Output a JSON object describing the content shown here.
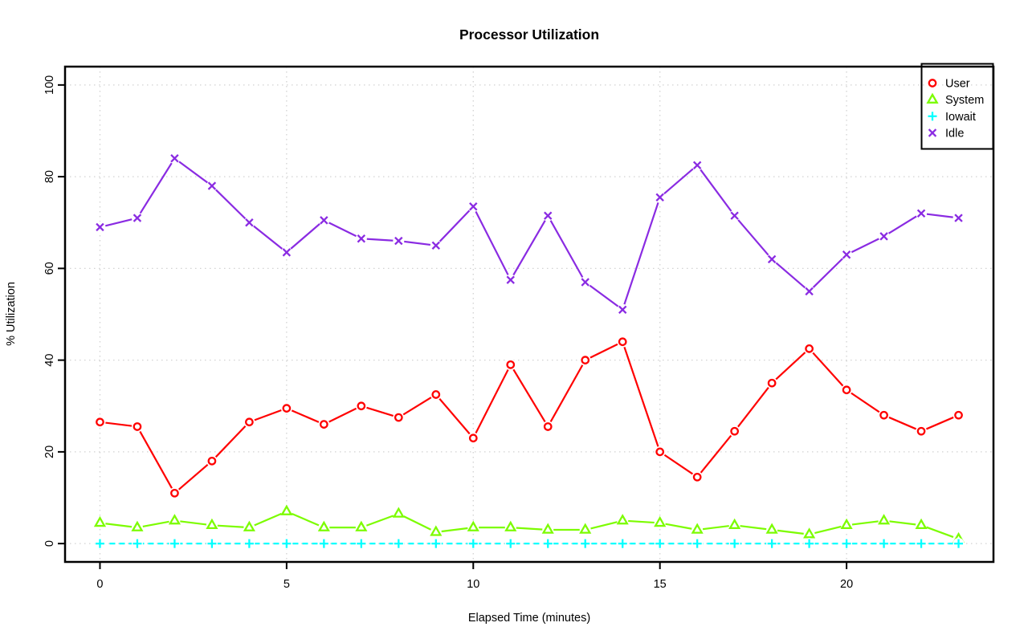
{
  "title": "Processor Utilization",
  "chart_data": {
    "type": "line",
    "title": "Processor Utilization",
    "xlabel": "Elapsed Time (minutes)",
    "ylabel": "% Utilization",
    "x": [
      0,
      1,
      2,
      3,
      4,
      5,
      6,
      7,
      8,
      9,
      10,
      11,
      12,
      13,
      14,
      15,
      16,
      17,
      18,
      19,
      20,
      21,
      22,
      23
    ],
    "series": [
      {
        "name": "User",
        "color": "#ff0000",
        "marker": "circle",
        "linestyle": "solid",
        "values": [
          26.5,
          25.5,
          11,
          18,
          26.5,
          29.5,
          26,
          30,
          27.5,
          32.5,
          23,
          39,
          25.5,
          40,
          44,
          20,
          14.5,
          24.5,
          35,
          42.5,
          33.5,
          28,
          24.5,
          28
        ]
      },
      {
        "name": "System",
        "color": "#7cfc00",
        "marker": "triangle",
        "linestyle": "solid",
        "values": [
          4.5,
          3.5,
          5,
          4,
          3.5,
          7,
          3.5,
          3.5,
          6.5,
          2.5,
          3.5,
          3.5,
          3,
          3,
          5,
          4.5,
          3,
          4,
          3,
          2,
          4,
          5,
          4,
          1
        ]
      },
      {
        "name": "Iowait",
        "color": "#00ffff",
        "marker": "plus",
        "linestyle": "dashed",
        "values": [
          0,
          0,
          0,
          0,
          0,
          0,
          0,
          0,
          0,
          0,
          0,
          0,
          0,
          0,
          0,
          0,
          0,
          0,
          0,
          0,
          0,
          0,
          0,
          0
        ]
      },
      {
        "name": "Idle",
        "color": "#8a2be2",
        "marker": "x",
        "linestyle": "solid",
        "values": [
          69,
          71,
          84,
          78,
          70,
          63.5,
          70.5,
          66.5,
          66,
          65,
          73.5,
          57.5,
          71.5,
          57,
          51,
          75.5,
          82.5,
          71.5,
          62,
          55,
          63,
          67,
          72,
          71
        ]
      }
    ],
    "xticks": {
      "values": [
        0,
        5,
        10,
        15,
        20
      ],
      "labels": [
        "0",
        "5",
        "10",
        "15",
        "20"
      ]
    },
    "yticks": {
      "values": [
        0,
        20,
        40,
        60,
        80,
        100
      ],
      "labels": [
        "0",
        "20",
        "40",
        "60",
        "80",
        "100"
      ]
    },
    "xlim": [
      -0.935,
      23.935
    ],
    "ylim": [
      0,
      100
    ],
    "grid": {
      "style": "dotted",
      "color": "#d2d2d2"
    },
    "legend_position": "top-right",
    "legend": {
      "items": [
        "User",
        "System",
        "Iowait",
        "Idle"
      ]
    }
  }
}
